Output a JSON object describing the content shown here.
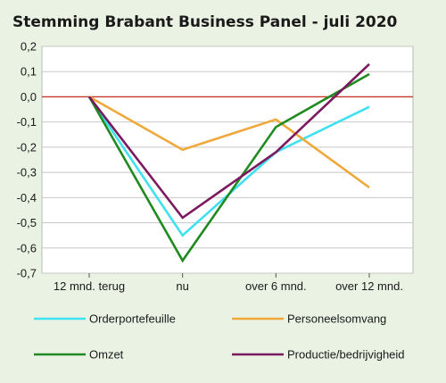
{
  "chart_data": {
    "type": "line",
    "title": "Stemming Brabant Business Panel - juli 2020",
    "categories": [
      "12 mnd. terug",
      "nu",
      "over 6 mnd.",
      "over 12 mnd."
    ],
    "y_tick_labels": [
      "0,2",
      "0,1",
      "0,0",
      "-0,1",
      "-0,2",
      "-0,3",
      "-0,4",
      "-0,5",
      "-0,6",
      "-0,7"
    ],
    "ylim": [
      -0.7,
      0.2
    ],
    "yticks": [
      0.2,
      0.1,
      0.0,
      -0.1,
      -0.2,
      -0.3,
      -0.4,
      -0.5,
      -0.6,
      -0.7
    ],
    "zero_line_color": "#c0392b",
    "grid": true,
    "legend_position": "bottom",
    "series": [
      {
        "name": "Orderportefeuille",
        "color": "#3fe0f0",
        "values": [
          0.0,
          -0.55,
          -0.22,
          -0.04
        ]
      },
      {
        "name": "Personeelsomvang",
        "color": "#f0a83a",
        "values": [
          0.0,
          -0.21,
          -0.09,
          -0.36
        ]
      },
      {
        "name": "Omzet",
        "color": "#1f8a1f",
        "values": [
          0.0,
          -0.65,
          -0.12,
          0.09
        ]
      },
      {
        "name": "Productie/bedrijvigheid",
        "color": "#7b1a5e",
        "values": [
          0.0,
          -0.48,
          -0.22,
          0.13
        ]
      }
    ]
  }
}
